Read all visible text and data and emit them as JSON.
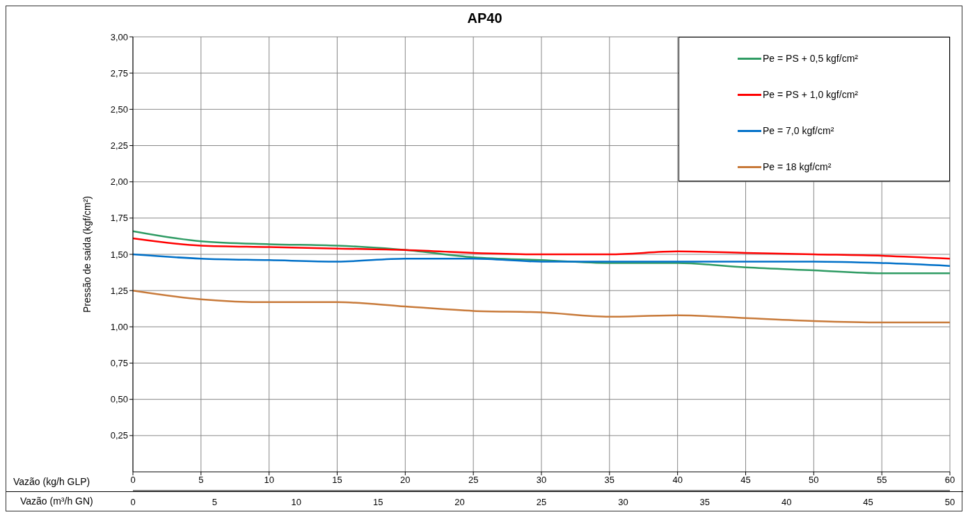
{
  "chart_data": {
    "type": "line",
    "title": "AP40",
    "xlabel": "Vazão (kg/h GLP)",
    "x2label": "Vazão (m³/h GN)",
    "ylabel": "Pressão de saída (kgf/cm²)",
    "x": [
      0,
      5,
      10,
      15,
      20,
      25,
      30,
      35,
      40,
      45,
      50,
      55,
      60
    ],
    "xlim": [
      0,
      60
    ],
    "xticks": [
      0,
      5,
      10,
      15,
      20,
      25,
      30,
      35,
      40,
      45,
      50,
      55,
      60
    ],
    "x2lim": [
      0,
      50
    ],
    "x2ticks": [
      0,
      5,
      10,
      15,
      20,
      25,
      30,
      35,
      40,
      45,
      50
    ],
    "ylim": [
      0,
      3
    ],
    "yticks": [
      {
        "value": 0.25,
        "label": "0,25"
      },
      {
        "value": 0.5,
        "label": "0,50"
      },
      {
        "value": 0.75,
        "label": "0,75"
      },
      {
        "value": 1,
        "label": "1,00"
      },
      {
        "value": 1.25,
        "label": "1,25"
      },
      {
        "value": 1.5,
        "label": "1,50"
      },
      {
        "value": 1.75,
        "label": "1,75"
      },
      {
        "value": 2,
        "label": "2,00"
      },
      {
        "value": 2.25,
        "label": "2,25"
      },
      {
        "value": 2.5,
        "label": "2,50"
      },
      {
        "value": 2.75,
        "label": "2,75"
      },
      {
        "value": 3,
        "label": "3,00"
      }
    ],
    "grid": true,
    "legend": "top right",
    "marker": "none",
    "line_style": "solid",
    "series": [
      {
        "name": "Pe = PS + 0,5 kgf/cm²",
        "color": "#2e9b63",
        "values": [
          1.66,
          1.59,
          1.57,
          1.56,
          1.53,
          1.48,
          1.46,
          1.44,
          1.44,
          1.41,
          1.39,
          1.37,
          1.37
        ]
      },
      {
        "name": "Pe = PS + 1,0 kgf/cm²",
        "color": "#ff0000",
        "values": [
          1.61,
          1.56,
          1.55,
          1.54,
          1.53,
          1.51,
          1.5,
          1.5,
          1.52,
          1.51,
          1.5,
          1.49,
          1.47
        ]
      },
      {
        "name": "Pe = 7,0 kgf/cm²",
        "color": "#0070c8",
        "values": [
          1.5,
          1.47,
          1.46,
          1.45,
          1.47,
          1.47,
          1.45,
          1.45,
          1.45,
          1.45,
          1.45,
          1.44,
          1.42
        ]
      },
      {
        "name": "Pe = 18 kgf/cm²",
        "color": "#c87a3a",
        "values": [
          1.25,
          1.19,
          1.17,
          1.17,
          1.14,
          1.11,
          1.1,
          1.07,
          1.08,
          1.06,
          1.04,
          1.03,
          1.03
        ]
      }
    ]
  }
}
